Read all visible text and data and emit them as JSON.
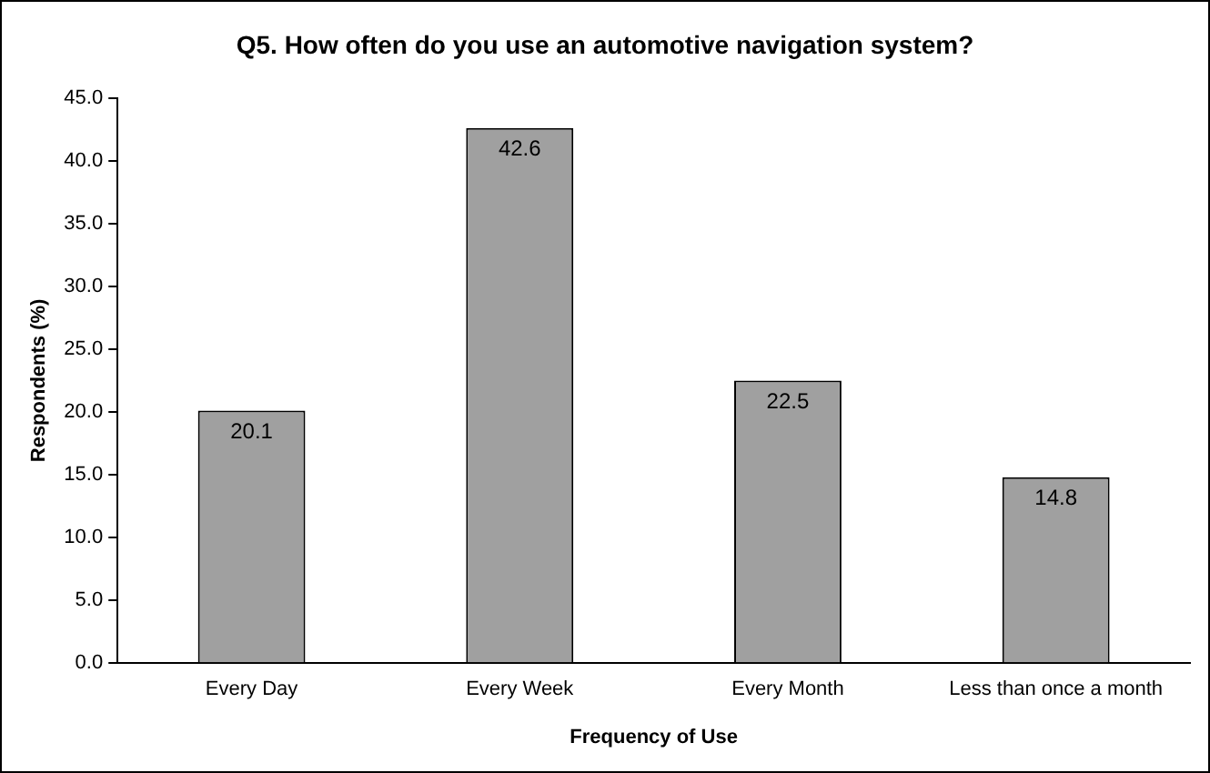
{
  "chart_data": {
    "type": "bar",
    "title": "Q5. How often do you use an automotive navigation system?",
    "xlabel": "Frequency of Use",
    "ylabel": "Respondents (%)",
    "categories": [
      "Every Day",
      "Every Week",
      "Every Month",
      "Less than once a month"
    ],
    "values": [
      20.1,
      42.6,
      22.5,
      14.8
    ],
    "color": "#a0a0a0",
    "data_labels": true,
    "grid": false,
    "legend": false,
    "ylim": [
      0,
      45
    ],
    "yticks": [
      {
        "value": 0,
        "label": "0.0"
      },
      {
        "value": 5,
        "label": "5.0"
      },
      {
        "value": 10,
        "label": "10.0"
      },
      {
        "value": 15,
        "label": "15.0"
      },
      {
        "value": 20,
        "label": "20.0"
      },
      {
        "value": 25,
        "label": "25.0"
      },
      {
        "value": 30,
        "label": "30.0"
      },
      {
        "value": 35,
        "label": "35.0"
      },
      {
        "value": 40,
        "label": "40.0"
      },
      {
        "value": 45,
        "label": "45.0"
      }
    ]
  }
}
